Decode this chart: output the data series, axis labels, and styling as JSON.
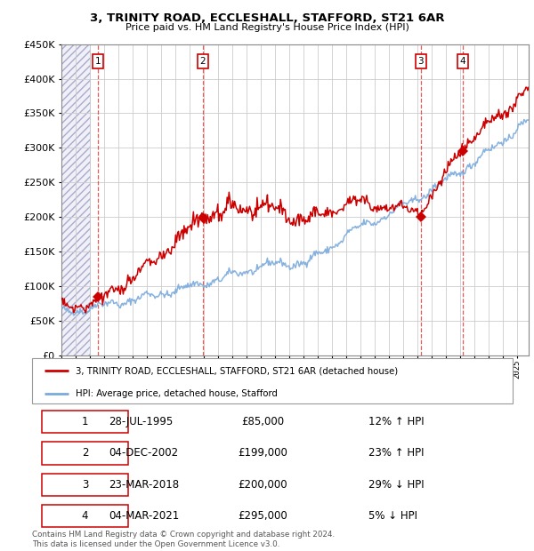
{
  "title": "3, TRINITY ROAD, ECCLESHALL, STAFFORD, ST21 6AR",
  "subtitle": "Price paid vs. HM Land Registry's House Price Index (HPI)",
  "ylim": [
    0,
    450000
  ],
  "yticks": [
    0,
    50000,
    100000,
    150000,
    200000,
    250000,
    300000,
    350000,
    400000,
    450000
  ],
  "xlim_start": 1993.0,
  "xlim_end": 2025.8,
  "hpi_color": "#7aaadd",
  "price_color": "#cc0000",
  "transactions": [
    {
      "label": "1",
      "date_num": 1995.57,
      "price": 85000
    },
    {
      "label": "2",
      "date_num": 2002.92,
      "price": 199000
    },
    {
      "label": "3",
      "date_num": 2018.22,
      "price": 200000
    },
    {
      "label": "4",
      "date_num": 2021.17,
      "price": 295000
    }
  ],
  "legend_line1": "3, TRINITY ROAD, ECCLESHALL, STAFFORD, ST21 6AR (detached house)",
  "legend_line2": "HPI: Average price, detached house, Stafford",
  "table_rows": [
    {
      "num": "1",
      "date": "28-JUL-1995",
      "price": "£85,000",
      "pct": "12% ↑ HPI"
    },
    {
      "num": "2",
      "date": "04-DEC-2002",
      "price": "£199,000",
      "pct": "23% ↑ HPI"
    },
    {
      "num": "3",
      "date": "23-MAR-2018",
      "price": "£200,000",
      "pct": "29% ↓ HPI"
    },
    {
      "num": "4",
      "date": "04-MAR-2021",
      "price": "£295,000",
      "pct": "5% ↓ HPI"
    }
  ],
  "footer": "Contains HM Land Registry data © Crown copyright and database right 2024.\nThis data is licensed under the Open Government Licence v3.0.",
  "grid_color": "#cccccc",
  "hatch_end": 1995.0
}
